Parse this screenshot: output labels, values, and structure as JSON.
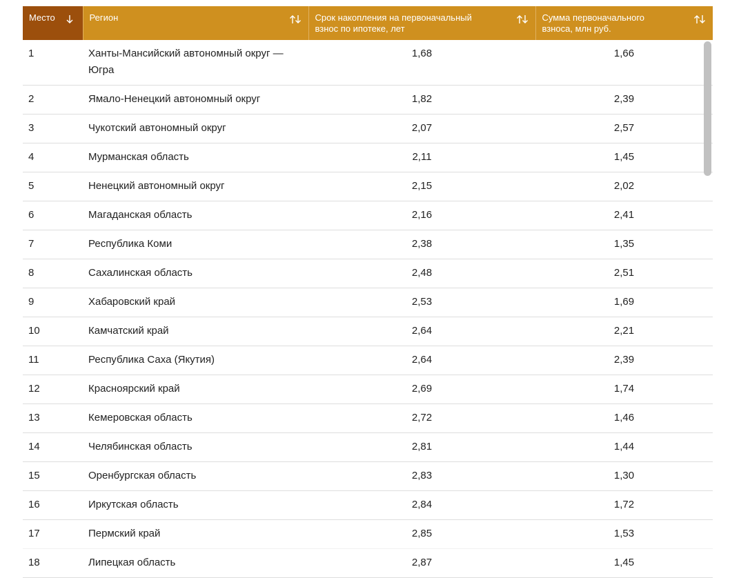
{
  "table": {
    "columns": [
      "Место",
      "Регион",
      "Срок накопления на первоначальный взнос по ипотеке, лет",
      "Сумма первоначального взноса, млн руб."
    ],
    "rows": [
      [
        "1",
        "Ханты-Мансийский автономный округ — Югра",
        "1,68",
        "1,66"
      ],
      [
        "2",
        "Ямало-Ненецкий автономный округ",
        "1,82",
        "2,39"
      ],
      [
        "3",
        "Чукотский автономный округ",
        "2,07",
        "2,57"
      ],
      [
        "4",
        "Мурманская область",
        "2,11",
        "1,45"
      ],
      [
        "5",
        "Ненецкий автономный округ",
        "2,15",
        "2,02"
      ],
      [
        "6",
        "Магаданская область",
        "2,16",
        "2,41"
      ],
      [
        "7",
        "Республика Коми",
        "2,38",
        "1,35"
      ],
      [
        "8",
        "Сахалинская область",
        "2,48",
        "2,51"
      ],
      [
        "9",
        "Хабаровский край",
        "2,53",
        "1,69"
      ],
      [
        "10",
        "Камчатский край",
        "2,64",
        "2,21"
      ],
      [
        "11",
        "Республика Саха (Якутия)",
        "2,64",
        "2,39"
      ],
      [
        "12",
        "Красноярский край",
        "2,69",
        "1,74"
      ],
      [
        "13",
        "Кемеровская область",
        "2,72",
        "1,46"
      ],
      [
        "14",
        "Челябинская область",
        "2,81",
        "1,44"
      ],
      [
        "15",
        "Оренбургская область",
        "2,83",
        "1,30"
      ],
      [
        "16",
        "Иркутская область",
        "2,84",
        "1,72"
      ],
      [
        "17",
        "Пермский край",
        "2,85",
        "1,53"
      ],
      [
        "18",
        "Липецкая область",
        "2,87",
        "1,45"
      ]
    ]
  }
}
